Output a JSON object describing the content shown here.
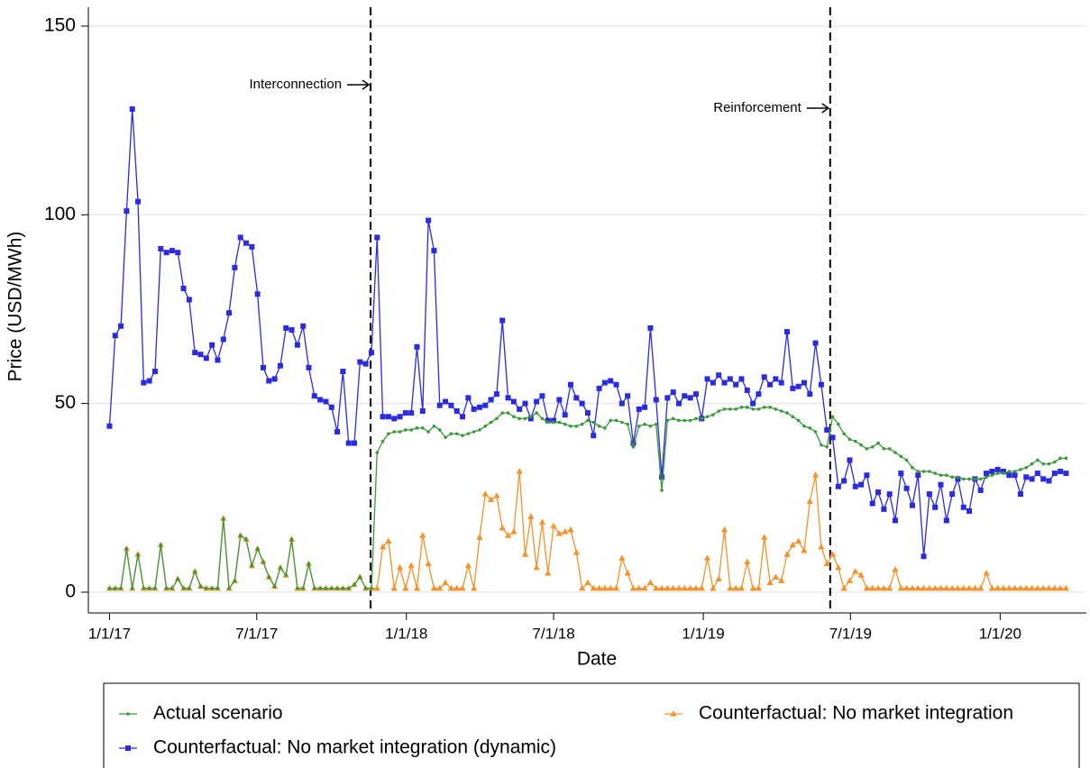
{
  "chart_data": {
    "type": "line",
    "x_label": "Date",
    "y_label": "Price (USD/MWh)",
    "xlim": [
      "2016-12-06",
      "2020-04-16"
    ],
    "xticks": [
      {
        "value": "2017-01-01",
        "label": "1/1/17"
      },
      {
        "value": "2017-07-01",
        "label": "7/1/17"
      },
      {
        "value": "2018-01-01",
        "label": "1/1/18"
      },
      {
        "value": "2018-07-01",
        "label": "7/1/18"
      },
      {
        "value": "2019-01-01",
        "label": "1/1/19"
      },
      {
        "value": "2019-07-01",
        "label": "7/1/19"
      },
      {
        "value": "2020-01-01",
        "label": "1/1/20"
      }
    ],
    "ylim": [
      -5.5,
      155
    ],
    "yticks": [
      0,
      50,
      100,
      150
    ],
    "grid": true,
    "annotations": [
      {
        "x": "2017-11-18",
        "label": "Interconnection"
      },
      {
        "x": "2019-06-06",
        "label": "Reinforcement"
      }
    ],
    "x": [
      "2017-01-01",
      "2017-01-08",
      "2017-01-15",
      "2017-01-22",
      "2017-01-29",
      "2017-02-05",
      "2017-02-12",
      "2017-02-19",
      "2017-02-26",
      "2017-03-05",
      "2017-03-12",
      "2017-03-19",
      "2017-03-26",
      "2017-04-02",
      "2017-04-09",
      "2017-04-16",
      "2017-04-23",
      "2017-04-30",
      "2017-05-07",
      "2017-05-14",
      "2017-05-21",
      "2017-05-28",
      "2017-06-04",
      "2017-06-11",
      "2017-06-18",
      "2017-06-25",
      "2017-07-02",
      "2017-07-09",
      "2017-07-16",
      "2017-07-23",
      "2017-07-30",
      "2017-08-06",
      "2017-08-13",
      "2017-08-20",
      "2017-08-27",
      "2017-09-03",
      "2017-09-10",
      "2017-09-17",
      "2017-09-24",
      "2017-10-01",
      "2017-10-08",
      "2017-10-15",
      "2017-10-22",
      "2017-10-29",
      "2017-11-05",
      "2017-11-12",
      "2017-11-19",
      "2017-11-26",
      "2017-12-03",
      "2017-12-10",
      "2017-12-17",
      "2017-12-24",
      "2017-12-31",
      "2018-01-07",
      "2018-01-14",
      "2018-01-21",
      "2018-01-28",
      "2018-02-04",
      "2018-02-11",
      "2018-02-18",
      "2018-02-25",
      "2018-03-04",
      "2018-03-11",
      "2018-03-18",
      "2018-03-25",
      "2018-04-01",
      "2018-04-08",
      "2018-04-15",
      "2018-04-22",
      "2018-04-29",
      "2018-05-06",
      "2018-05-13",
      "2018-05-20",
      "2018-05-27",
      "2018-06-03",
      "2018-06-10",
      "2018-06-17",
      "2018-06-24",
      "2018-07-01",
      "2018-07-08",
      "2018-07-15",
      "2018-07-22",
      "2018-07-29",
      "2018-08-05",
      "2018-08-12",
      "2018-08-19",
      "2018-08-26",
      "2018-09-02",
      "2018-09-09",
      "2018-09-16",
      "2018-09-23",
      "2018-09-30",
      "2018-10-07",
      "2018-10-14",
      "2018-10-21",
      "2018-10-28",
      "2018-11-04",
      "2018-11-11",
      "2018-11-18",
      "2018-11-25",
      "2018-12-02",
      "2018-12-09",
      "2018-12-16",
      "2018-12-23",
      "2018-12-30",
      "2019-01-06",
      "2019-01-13",
      "2019-01-20",
      "2019-01-27",
      "2019-02-03",
      "2019-02-10",
      "2019-02-17",
      "2019-02-24",
      "2019-03-03",
      "2019-03-10",
      "2019-03-17",
      "2019-03-24",
      "2019-03-31",
      "2019-04-07",
      "2019-04-14",
      "2019-04-21",
      "2019-04-28",
      "2019-05-05",
      "2019-05-12",
      "2019-05-19",
      "2019-05-26",
      "2019-06-02",
      "2019-06-09",
      "2019-06-16",
      "2019-06-23",
      "2019-06-30",
      "2019-07-07",
      "2019-07-14",
      "2019-07-21",
      "2019-07-28",
      "2019-08-04",
      "2019-08-11",
      "2019-08-18",
      "2019-08-25",
      "2019-09-01",
      "2019-09-08",
      "2019-09-15",
      "2019-09-22",
      "2019-09-29",
      "2019-10-06",
      "2019-10-13",
      "2019-10-20",
      "2019-10-27",
      "2019-11-03",
      "2019-11-10",
      "2019-11-17",
      "2019-11-24",
      "2019-12-01",
      "2019-12-08",
      "2019-12-15",
      "2019-12-22",
      "2019-12-29",
      "2020-01-05",
      "2020-01-12",
      "2020-01-19",
      "2020-01-26",
      "2020-02-02",
      "2020-02-09",
      "2020-02-16",
      "2020-02-23",
      "2020-03-01",
      "2020-03-08",
      "2020-03-15",
      "2020-03-22"
    ],
    "series": [
      {
        "name": "Actual scenario",
        "color": "#3a9a3a",
        "marker": "dot",
        "values": [
          1,
          1,
          1,
          11.5,
          1,
          10,
          1,
          1,
          1,
          12.5,
          1,
          1,
          3.5,
          1,
          1,
          5.5,
          1.5,
          1,
          1,
          1,
          19.5,
          1,
          3,
          15,
          14,
          7,
          11.5,
          8,
          4,
          1.5,
          6.5,
          4.5,
          14,
          1,
          1,
          7.5,
          1,
          1,
          1,
          1,
          1,
          1,
          1,
          2,
          4,
          1,
          1,
          37,
          40,
          42,
          42.5,
          42.5,
          43,
          43,
          43.5,
          43.5,
          42.5,
          44,
          43,
          41,
          42,
          42,
          41.5,
          42,
          42.5,
          43,
          44,
          45,
          46,
          47.5,
          47.5,
          46.5,
          46,
          46,
          46.5,
          47.5,
          46,
          45,
          45,
          45,
          44.5,
          44,
          44,
          44.5,
          45.5,
          45,
          44,
          43.5,
          45.5,
          45.5,
          45,
          44.5,
          38.5,
          44,
          44.5,
          44,
          44.5,
          27,
          45.5,
          46,
          45.5,
          45.5,
          45.5,
          46,
          46,
          46.5,
          47,
          48,
          48.5,
          48.5,
          48.5,
          49,
          49,
          48.5,
          48.5,
          49,
          49,
          48.5,
          48,
          47.5,
          46.5,
          45.5,
          44,
          43.5,
          42.5,
          39,
          38.5,
          46.5,
          44.5,
          42,
          40.5,
          40,
          39,
          38,
          38.5,
          39.5,
          38,
          38,
          37,
          36,
          35,
          33,
          32,
          32,
          32,
          31.5,
          31,
          31,
          30.5,
          30.5,
          30,
          30,
          30,
          30,
          30.5,
          31,
          31.5,
          31.5,
          32,
          32,
          32.5,
          33,
          34,
          35,
          34,
          34,
          34.5,
          35.5,
          35.5
        ]
      },
      {
        "name": "Counterfactual: No market integration",
        "color": "#f5922a",
        "marker": "triangle",
        "values": [
          1,
          1,
          1,
          11.5,
          1,
          10,
          1,
          1,
          1,
          12.5,
          1,
          1,
          3.5,
          1,
          1,
          5.5,
          1.5,
          1,
          1,
          1,
          19.5,
          1,
          3,
          15,
          14,
          7,
          11.5,
          8,
          4,
          1.5,
          6.5,
          4.5,
          14,
          1,
          1,
          7.5,
          1,
          1,
          1,
          1,
          1,
          1,
          1,
          2,
          4,
          1,
          1,
          1,
          12,
          13.5,
          1,
          6.5,
          1,
          7,
          1,
          15,
          7.5,
          1,
          1,
          2.5,
          1,
          1,
          1,
          7,
          1,
          14.5,
          26,
          24.5,
          25.5,
          17,
          15,
          16,
          32,
          10,
          20,
          6.5,
          18.5,
          5,
          17.5,
          15.5,
          16,
          16.5,
          10.5,
          1,
          2.5,
          1,
          1,
          1,
          1,
          1,
          9,
          5,
          1,
          1,
          1,
          2.5,
          1,
          1,
          1,
          1,
          1,
          1,
          1,
          1,
          1,
          9,
          1,
          3.5,
          16.5,
          1,
          1,
          1,
          8,
          1,
          1,
          14.5,
          2.5,
          4,
          3,
          10,
          12.5,
          13.5,
          11,
          24,
          31,
          12,
          7.5,
          10,
          6.5,
          1,
          3,
          5.5,
          4.5,
          1,
          1,
          1,
          1,
          1,
          6,
          1,
          1,
          1,
          1,
          1,
          1,
          1,
          1,
          1,
          1,
          1,
          1,
          1,
          1,
          1,
          5,
          1,
          1,
          1,
          1,
          1,
          1,
          1,
          1,
          1,
          1,
          1,
          1,
          1,
          1
        ]
      },
      {
        "name": "Counterfactual: No market integration (dynamic)",
        "color": "#2a2ae0",
        "marker": "square",
        "values": [
          44,
          68,
          70.5,
          101,
          128,
          103.5,
          55.5,
          56,
          58.5,
          91,
          90,
          90.5,
          90,
          80.5,
          77.5,
          63.5,
          63,
          62,
          65.5,
          61.5,
          67,
          74,
          86,
          94,
          92.5,
          91.5,
          79,
          59.5,
          56,
          56.5,
          60,
          70,
          69.5,
          65.5,
          70.5,
          59.5,
          52,
          51,
          50.5,
          49,
          42.5,
          58.5,
          39.5,
          39.5,
          61,
          60.5,
          63.5,
          94,
          46.5,
          46.5,
          46,
          46.5,
          47.5,
          47.5,
          65,
          48,
          98.5,
          90.5,
          49.5,
          50.5,
          49.5,
          48,
          46.5,
          51.5,
          48.5,
          49,
          49.5,
          51,
          52.5,
          72,
          51.5,
          50.5,
          48.5,
          50,
          46,
          50.5,
          52,
          45.5,
          45.5,
          51,
          47,
          55,
          51.5,
          50,
          47.5,
          41.5,
          54,
          55.5,
          56,
          55,
          50,
          52,
          39.5,
          48.5,
          49,
          70,
          51,
          30.5,
          51.5,
          53,
          50,
          52,
          51.5,
          52.5,
          46,
          56.5,
          55.5,
          57.5,
          55.5,
          56.5,
          55,
          56.5,
          53.5,
          50,
          52.5,
          57,
          55,
          56.5,
          55.5,
          69,
          54,
          54.5,
          55.5,
          52.5,
          66,
          55,
          43,
          41,
          28,
          29.5,
          35,
          28,
          28.5,
          31,
          23.5,
          26.5,
          22,
          26,
          19,
          31.5,
          27.5,
          23,
          31,
          9.5,
          26,
          22.5,
          28.5,
          19,
          26,
          30,
          22.5,
          21.5,
          30,
          27,
          31.5,
          32,
          32.5,
          32,
          31,
          31,
          26,
          30.5,
          30,
          31.5,
          30,
          29.5,
          31.5,
          32,
          31.5
        ]
      }
    ]
  }
}
